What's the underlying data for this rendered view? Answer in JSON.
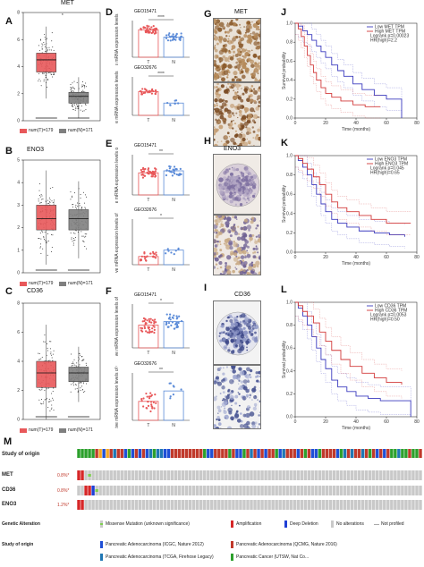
{
  "panels": {
    "A": {
      "label": "A",
      "gene": "MET",
      "legend": [
        "num(T)=179",
        "num(N)=171"
      ],
      "tumor_box": [
        3.6,
        4.5,
        5.0
      ],
      "normal_box": [
        1.3,
        1.8,
        2.1
      ],
      "ylim": [
        0,
        8
      ],
      "y_ticks": [
        "0",
        "2",
        "4",
        "6",
        "8"
      ],
      "sig": "*"
    },
    "B": {
      "label": "B",
      "gene": "ENO3",
      "legend": [
        "num(T)=179",
        "num(N)=171"
      ],
      "tumor_box": [
        1.9,
        2.4,
        3.0
      ],
      "normal_box": [
        1.9,
        2.4,
        2.8
      ],
      "ylim": [
        0,
        5
      ],
      "y_ticks": [
        "0",
        "1",
        "2",
        "3",
        "4",
        "5"
      ]
    },
    "C": {
      "label": "C",
      "gene": "CD36",
      "legend": [
        "num(T)=179",
        "num(N)=171"
      ],
      "tumor_box": [
        2.2,
        3.2,
        4.0
      ],
      "normal_box": [
        2.6,
        3.2,
        3.6
      ],
      "ylim": [
        0,
        8
      ],
      "y_ticks": [
        "0",
        "2",
        "4",
        "6",
        "8"
      ]
    },
    "D": {
      "label": "D",
      "top_title": "GEO15471",
      "top_sig": "****",
      "bottom_title": "GEO32676",
      "bottom_sig": "****",
      "ylabel_top": "Relative mRNA expression levels of MET",
      "ylabel_bottom": "Relative mRNA expression levels of MET",
      "groups": [
        "T",
        "N"
      ]
    },
    "E": {
      "label": "E",
      "top_title": "GEO15471",
      "top_sig": "**",
      "bottom_title": "GEO32676",
      "bottom_sig": "*",
      "ylabel_top": "Relative mRNA expression levels of ENO3",
      "ylabel_bottom": "Relative mRNA expression levels of ENO3",
      "groups": [
        "T",
        "N"
      ]
    },
    "F": {
      "label": "F",
      "top_title": "GEO15471",
      "top_sig": "*",
      "bottom_title": "GEO32676",
      "bottom_sig": "**",
      "ylabel_top": "Relative mRNA expression levels of CD36",
      "ylabel_bottom": "Relative mRNA expression levels of CD36",
      "groups": [
        "T",
        "N"
      ]
    },
    "G": {
      "label": "G",
      "gene": "MET"
    },
    "H": {
      "label": "H",
      "gene": "ENO3"
    },
    "I": {
      "label": "I",
      "gene": "CD36"
    },
    "J": {
      "label": "J",
      "legend": [
        "Low MET TPM",
        "High MET TPM",
        "Logrank p=0.00023",
        "HR(high)=2.2"
      ],
      "ylabel": "Survival probability",
      "xlabel": "Time (months)",
      "x_ticks": [
        "0",
        "20",
        "40",
        "60",
        "80"
      ],
      "y_ticks": [
        "0.0",
        "0.2",
        "0.4",
        "0.6",
        "0.8",
        "1.0"
      ]
    },
    "K": {
      "label": "K",
      "legend": [
        "Low ENO3 TPM",
        "High ENO3 TPM",
        "Logrank p=0.045",
        "HR(high)=0.65"
      ],
      "ylabel": "Survival probability",
      "xlabel": "Time (months)",
      "x_ticks": [
        "0",
        "20",
        "40",
        "60",
        "80"
      ],
      "y_ticks": [
        "0.0",
        "0.2",
        "0.4",
        "0.6",
        "0.8",
        "1.0"
      ]
    },
    "L": {
      "label": "L",
      "legend": [
        "Low CD36 TPM",
        "High CD36 TPM",
        "Logrank p=0.0053",
        "HR(high)=0.50"
      ],
      "ylabel": "Survival probability",
      "xlabel": "Time (months)",
      "x_ticks": [
        "0",
        "20",
        "40",
        "60",
        "80"
      ],
      "y_ticks": [
        "0.0",
        "0.2",
        "0.4",
        "0.6",
        "0.8",
        "1.0"
      ]
    },
    "M": {
      "label": "M",
      "rows": [
        {
          "name": "Study of origin",
          "pct": ""
        },
        {
          "name": "MET",
          "pct": "0.8%*"
        },
        {
          "name": "CD36",
          "pct": "0.8%*"
        },
        {
          "name": "ENO3",
          "pct": "1.2%*"
        }
      ],
      "genetic_alteration_label": "Genetic Alteration",
      "alteration_legend": [
        "Missense Mutation (unknown significance)",
        "Amplification",
        "Deep Deletion",
        "No alterations",
        "Not profiled"
      ],
      "study_label": "Study of origin",
      "study_legend": [
        "Pancreatic Adenocarcinoma (ICGC, Nature 2012)",
        "Pancreatic Adenocarcinoma (QCMG, Nature 2016)",
        "Pancreatic Adenocarcinoma (TCGA, Firehose Legacy)",
        "Pancreatic Cancer (UTSW, Nat Co..."
      ]
    }
  },
  "colors": {
    "tumor": "#e8585a",
    "normal": "#7f7f7f",
    "km_low": "#3b3bbf",
    "km_high": "#d23a3a",
    "amp": "#d62728",
    "deldel": "#1f3fd6",
    "missense": "#7fcf4f",
    "noalt": "#c9c9c9",
    "study_icgc": "#1f4fd6",
    "study_qcmg": "#c0392b",
    "study_tcga": "#1f77b4",
    "study_utsw": "#2ca02c"
  }
}
